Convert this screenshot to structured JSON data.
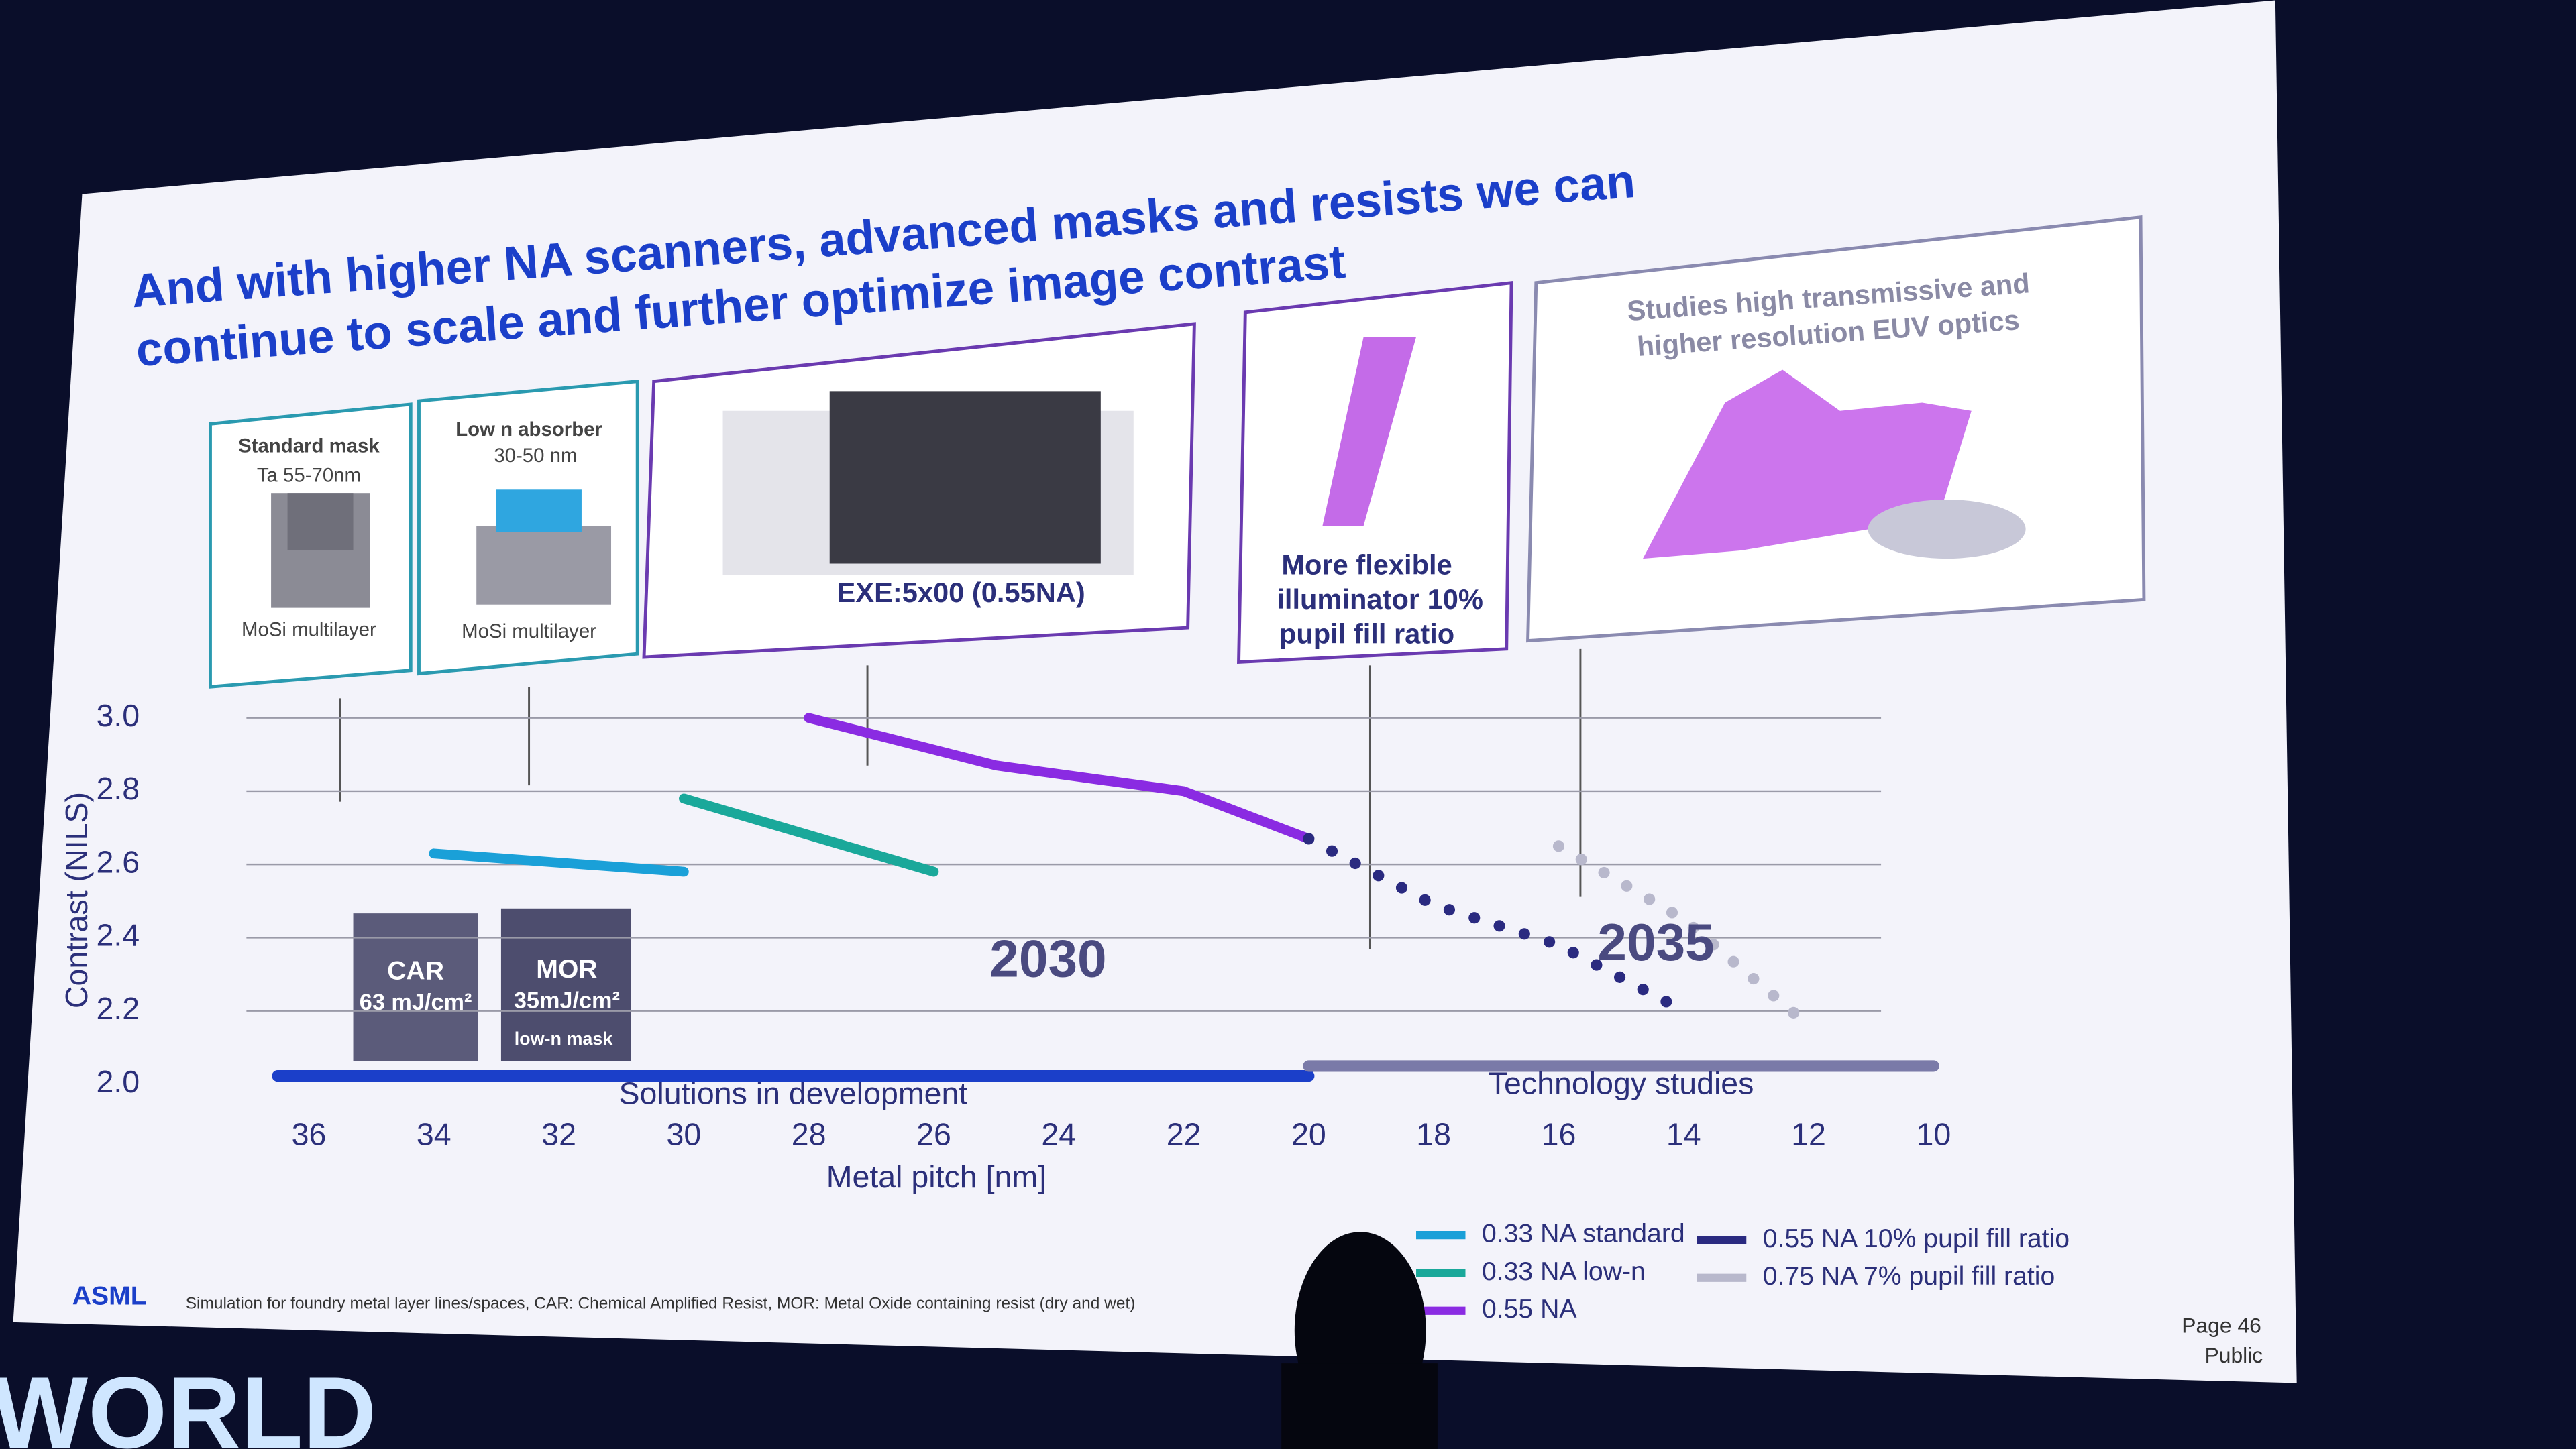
{
  "slide": {
    "title_lines": [
      "And with higher NA scanners, advanced masks and resists we can",
      "continue to scale and further optimize image contrast"
    ],
    "panels": [
      {
        "title": "Standard mask",
        "subtitle": "Ta 55-70nm",
        "footer": "MoSi multilayer"
      },
      {
        "title": "Low n absorber",
        "subtitle": "30-50 nm",
        "footer": "MoSi multilayer"
      },
      {
        "caption": [
          "EXE:5x00 (0.55NA)"
        ]
      },
      {
        "caption": [
          "More flexible",
          "illuminator 10%",
          "pupil fill ratio"
        ]
      },
      {
        "caption": [
          "Studies high transmissive and",
          "higher resolution EUV optics"
        ]
      }
    ],
    "resists": [
      {
        "name": "CAR",
        "dose": "63 mJ/cm²"
      },
      {
        "name": "MOR",
        "dose": "35mJ/cm²",
        "note": "low-n mask"
      }
    ],
    "footer": {
      "logo": "ASML",
      "note": "Simulation for foundry metal layer lines/spaces, CAR: Chemical Amplified Resist, MOR: Metal Oxide containing resist (dry and wet)",
      "page": "Page 46",
      "classification": "Public"
    },
    "stage": "WORLD"
  },
  "chart_data": {
    "type": "line",
    "x_label": "Metal pitch [nm]",
    "y_label": "Contrast (NILS)",
    "xlim": [
      37,
      9
    ],
    "xticks": [
      36,
      34,
      32,
      30,
      28,
      26,
      24,
      22,
      20,
      18,
      16,
      14,
      12,
      10
    ],
    "ylim": [
      2.0,
      3.0
    ],
    "yticks": [
      {
        "value": 2.0,
        "label": "2.0"
      },
      2.2,
      2.4,
      2.6,
      2.8,
      {
        "value": 3.0,
        "label": "3.0"
      }
    ],
    "grid": true,
    "series": [
      {
        "name": "0.33 NA standard",
        "color": "#1aa0d8",
        "style": "solid",
        "x": [
          34,
          30
        ],
        "values": [
          2.63,
          2.58
        ]
      },
      {
        "name": "0.33 NA low-n",
        "color": "#1aa89a",
        "style": "solid",
        "x": [
          30,
          26
        ],
        "values": [
          2.78,
          2.58
        ]
      },
      {
        "name": "0.55 NA",
        "color": "#8a2be2",
        "style": "solid",
        "x": [
          28,
          25,
          22,
          20
        ],
        "values": [
          3.0,
          2.87,
          2.8,
          2.67
        ]
      },
      {
        "name": "0.55 NA 10% pupil fill ratio",
        "color": "#2a2a80",
        "style": "dotted",
        "x": [
          20,
          18,
          16,
          14
        ],
        "values": [
          2.67,
          2.49,
          2.38,
          2.2
        ]
      },
      {
        "name": "0.75 NA 7% pupil fill ratio",
        "color": "#b8b8cc",
        "style": "dotted",
        "x": [
          16,
          14,
          12
        ],
        "values": [
          2.65,
          2.45,
          2.16
        ]
      }
    ],
    "phases": [
      {
        "label": "Solutions in development",
        "range": [
          36.5,
          20
        ],
        "color": "#1b3fc9"
      },
      {
        "label": "Technology studies",
        "range": [
          20,
          10
        ],
        "color": "#7a7aa8"
      }
    ],
    "milestones": [
      "2030",
      "2035"
    ]
  }
}
